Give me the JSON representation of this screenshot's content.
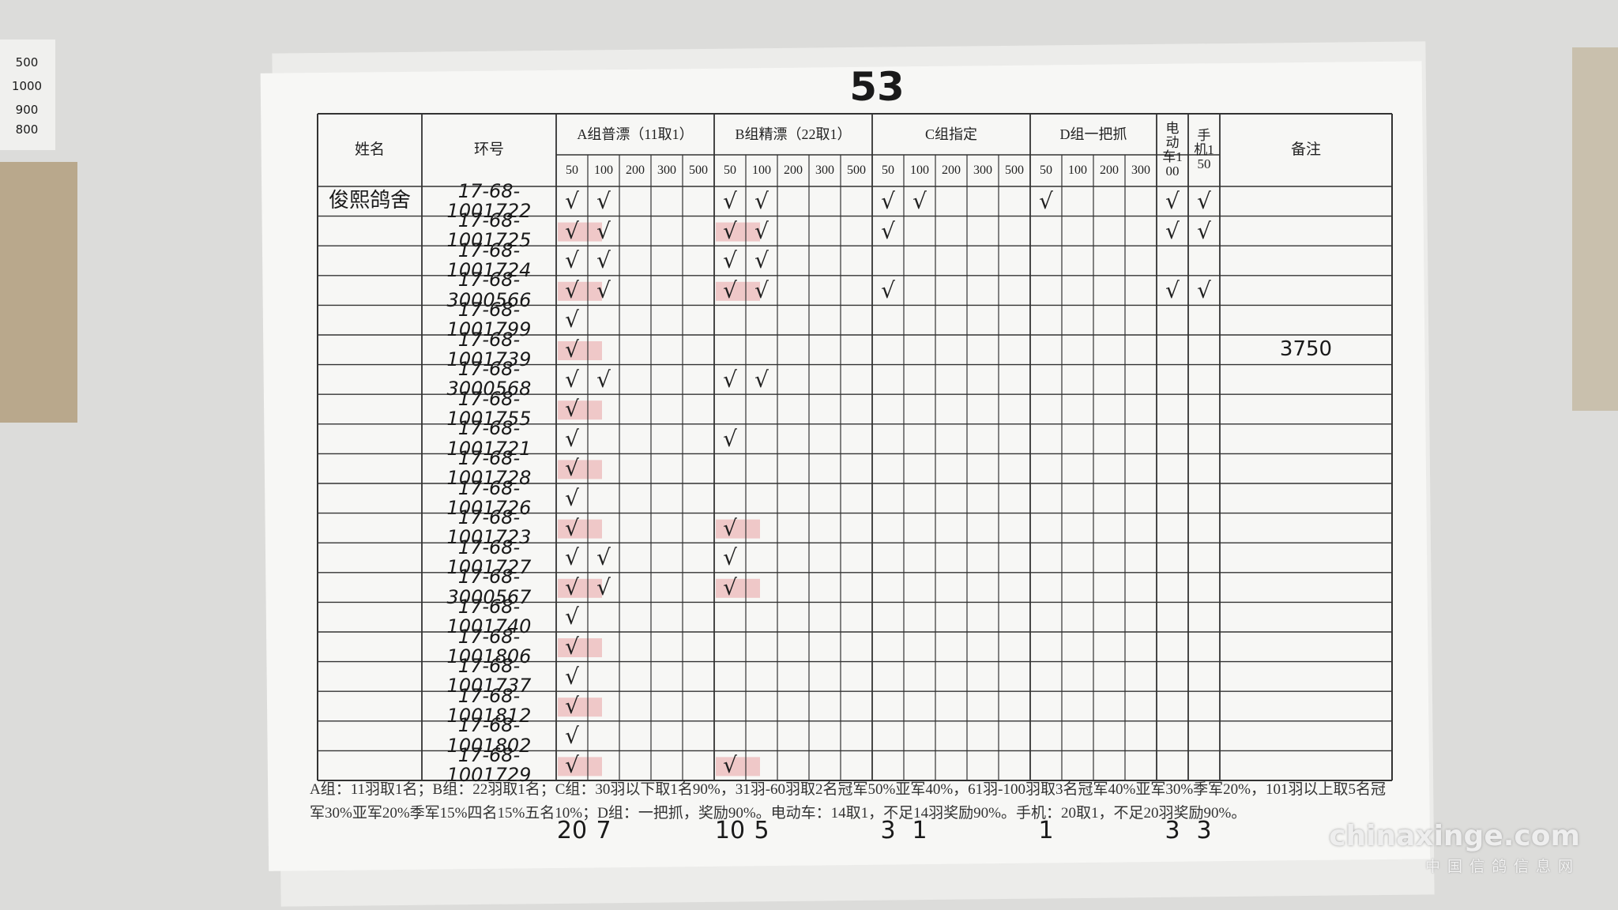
{
  "side_notes": [
    "500",
    "1000",
    "900",
    "800"
  ],
  "sheet_number": "53",
  "table": {
    "name_header": "姓名",
    "ring_header": "环号",
    "groups": [
      {
        "key": "A",
        "label": "A组普漂（11取1）",
        "sub": [
          "50",
          "100",
          "200",
          "300",
          "500"
        ]
      },
      {
        "key": "B",
        "label": "B组精漂（22取1）",
        "sub": [
          "50",
          "100",
          "200",
          "300",
          "500"
        ]
      },
      {
        "key": "C",
        "label": "C组指定",
        "sub": [
          "50",
          "100",
          "200",
          "300",
          "500"
        ]
      },
      {
        "key": "D",
        "label": "D组一把抓",
        "sub": [
          "50",
          "100",
          "200",
          "300"
        ]
      },
      {
        "key": "E",
        "label": "电动车100"
      },
      {
        "key": "F",
        "label": "手机150"
      }
    ],
    "remark_header": "备注",
    "rows": [
      {
        "name": "俊熙鸽舍",
        "ring": "17-68-1001722",
        "checks": {
          "A50": "√",
          "A100": "√",
          "B50": "√",
          "B100": "√",
          "C50": "√",
          "C100": "√",
          "D50": "√",
          "E": "√",
          "F": "√"
        }
      },
      {
        "ring": "17-68-1001725",
        "checks": {
          "A50": "√",
          "A100": "√",
          "B50": "√",
          "B100": "√",
          "C50": "√",
          "E": "√",
          "F": "√"
        }
      },
      {
        "ring": "17-68-1001724",
        "checks": {
          "A50": "√",
          "A100": "√",
          "B50": "√",
          "B100": "√"
        }
      },
      {
        "ring": "17-68-3000566",
        "checks": {
          "A50": "√",
          "A100": "√",
          "B50": "√",
          "B100": "√",
          "C50": "√",
          "E": "√",
          "F": "√"
        }
      },
      {
        "ring": "17-68-1001799",
        "checks": {
          "A50": "√"
        }
      },
      {
        "ring": "17-68-1001739",
        "checks": {
          "A50": "√"
        },
        "remark": "3750"
      },
      {
        "ring": "17-68-3000568",
        "checks": {
          "A50": "√",
          "A100": "√",
          "B50": "√",
          "B100": "√"
        }
      },
      {
        "ring": "17-68-1001755",
        "checks": {
          "A50": "√"
        }
      },
      {
        "ring": "17-68-1001721",
        "checks": {
          "A50": "√",
          "B50": "√"
        }
      },
      {
        "ring": "17-68-1001728",
        "checks": {
          "A50": "√"
        }
      },
      {
        "ring": "17-68-1001726",
        "checks": {
          "A50": "√"
        }
      },
      {
        "ring": "17-68-1001723",
        "checks": {
          "A50": "√",
          "B50": "√"
        }
      },
      {
        "ring": "17-68-1001727",
        "checks": {
          "A50": "√",
          "A100": "√",
          "B50": "√"
        }
      },
      {
        "ring": "17-68-3000567",
        "checks": {
          "A50": "√",
          "A100": "√",
          "B50": "√"
        }
      },
      {
        "ring": "17-68-1001740",
        "checks": {
          "A50": "√"
        }
      },
      {
        "ring": "17-68-1001806",
        "checks": {
          "A50": "√"
        }
      },
      {
        "ring": "17-68-1001737",
        "checks": {
          "A50": "√"
        }
      },
      {
        "ring": "17-68-1001812",
        "checks": {
          "A50": "√"
        }
      },
      {
        "ring": "17-68-1001802",
        "checks": {
          "A50": "√"
        }
      },
      {
        "ring": "17-68-1001729",
        "checks": {
          "A50": "√",
          "B50": "√"
        }
      }
    ]
  },
  "rules_note": "A组：11羽取1名；B组：22羽取1名；C组：30羽以下取1名90%，31羽-60羽取2名冠军50%亚军40%，61羽-100羽取3名冠军40%亚军30%季军20%，101羽以上取5名冠军30%亚军20%季军15%四名15%五名10%；D组：一把抓，奖励90%。电动车：14取1，不足14羽奖励90%。手机：20取1，不足20羽奖励90%。",
  "totals": {
    "A50": 20,
    "A100": 7,
    "B50": 10,
    "B100": 5,
    "C50": 3,
    "C100": 1,
    "D50": 1,
    "E": 3,
    "F": 3
  },
  "watermark": {
    "site": "chinaxinge.com",
    "name": "中国信鸽信息网"
  }
}
